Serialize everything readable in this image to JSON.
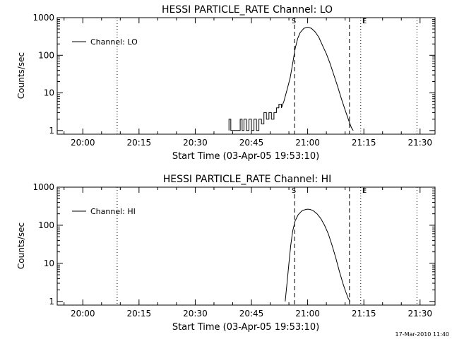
{
  "chart_data": [
    {
      "type": "line",
      "title": "HESSI PARTICLE_RATE Channel: LO",
      "xlabel": "Start Time (03-Apr-05 19:53:10)",
      "ylabel": "Counts/sec",
      "yscale": "log",
      "ylim": [
        0.8,
        1000
      ],
      "xlim": [
        "19:53:10",
        "21:34:00"
      ],
      "xticks": [
        "20:00",
        "20:15",
        "20:30",
        "20:45",
        "21:00",
        "21:15",
        "21:30"
      ],
      "yticks": [
        "1",
        "10",
        "100",
        "1000"
      ],
      "grid": false,
      "legend_position": "top-left",
      "series": [
        {
          "name": "Channel: LO",
          "x": [
            "20:39:00",
            "20:39:00",
            "20:39:30",
            "20:39:30",
            "20:42:00",
            "20:42:00",
            "20:42:30",
            "20:42:30",
            "20:43:00",
            "20:43:00",
            "20:43:40",
            "20:43:40",
            "20:44:20",
            "20:44:20",
            "20:45:00",
            "20:45:00",
            "20:45:40",
            "20:45:40",
            "20:46:20",
            "20:46:20",
            "20:47:00",
            "20:47:00",
            "20:47:40",
            "20:47:40",
            "20:48:20",
            "20:48:20",
            "20:49:00",
            "20:49:00",
            "20:49:40",
            "20:49:40",
            "20:50:20",
            "20:50:20",
            "20:51:00",
            "20:51:00",
            "20:51:40",
            "20:51:40",
            "20:52:20",
            "20:52:20",
            "20:53:00",
            "20:53:00",
            "20:53:40",
            "20:54:30",
            "20:55:20",
            "20:56:00",
            "20:56:40",
            "20:57:20",
            "20:58:00",
            "20:59:00",
            "21:00:00",
            "21:01:00",
            "21:02:00",
            "21:03:00",
            "21:04:00",
            "21:05:00",
            "21:06:00",
            "21:07:00",
            "21:08:00",
            "21:09:00",
            "21:10:00",
            "21:11:00",
            "21:11:40",
            "21:12:10"
          ],
          "values": [
            1,
            2,
            2,
            1,
            1,
            2,
            2,
            1,
            1,
            2,
            2,
            1,
            1,
            2,
            2,
            1,
            1,
            2,
            2,
            1,
            1,
            2,
            2,
            1.5,
            1.5,
            3,
            3,
            2,
            2,
            3,
            3,
            2,
            2,
            3,
            3,
            4,
            4,
            5,
            5,
            4,
            6,
            12,
            25,
            60,
            150,
            280,
            400,
            520,
            560,
            520,
            420,
            300,
            180,
            110,
            60,
            30,
            15,
            7,
            3.5,
            1.8,
            1.2,
            1
          ]
        }
      ],
      "annotations": [
        "S",
        "E"
      ]
    },
    {
      "type": "line",
      "title": "HESSI PARTICLE_RATE Channel: HI",
      "xlabel": "Start Time (03-Apr-05 19:53:10)",
      "ylabel": "Counts/sec",
      "yscale": "log",
      "ylim": [
        0.8,
        1000
      ],
      "xlim": [
        "19:53:10",
        "21:34:00"
      ],
      "xticks": [
        "20:00",
        "20:15",
        "20:30",
        "20:45",
        "21:00",
        "21:15",
        "21:30"
      ],
      "yticks": [
        "1",
        "10",
        "100",
        "1000"
      ],
      "grid": false,
      "legend_position": "top-left",
      "series": [
        {
          "name": "Channel: HI",
          "x": [
            "20:54:00",
            "20:54:30",
            "20:55:00",
            "20:55:30",
            "20:56:00",
            "20:56:40",
            "20:57:30",
            "20:58:30",
            "20:59:30",
            "21:00:00",
            "21:00:40",
            "21:01:30",
            "21:02:30",
            "21:03:30",
            "21:04:30",
            "21:05:30",
            "21:06:30",
            "21:07:30",
            "21:08:30",
            "21:09:30",
            "21:10:10",
            "21:10:50",
            "21:11:20"
          ],
          "values": [
            1,
            3,
            10,
            30,
            70,
            130,
            190,
            240,
            260,
            265,
            260,
            240,
            200,
            150,
            100,
            60,
            30,
            14,
            6,
            2.8,
            1.8,
            1.2,
            1
          ]
        }
      ],
      "annotations": [
        "S",
        "E"
      ]
    }
  ],
  "footer": {
    "timestamp": "17-Mar-2010 11:40"
  }
}
